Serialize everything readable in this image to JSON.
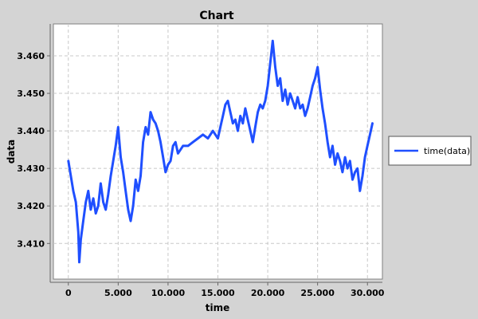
{
  "chart_data": {
    "type": "line",
    "title": "Chart",
    "xlabel": "time",
    "ylabel": "data",
    "xlim": [
      -1500,
      31500
    ],
    "ylim": [
      3.4005,
      3.4685
    ],
    "x_ticks": [
      0,
      5000,
      10000,
      15000,
      20000,
      25000,
      30000
    ],
    "x_tick_labels": [
      "0",
      "5.000",
      "10.000",
      "15.000",
      "20.000",
      "25.000",
      "30.000"
    ],
    "y_ticks": [
      3.41,
      3.42,
      3.43,
      3.44,
      3.45,
      3.46
    ],
    "y_tick_labels": [
      "3.410",
      "3.420",
      "3.430",
      "3.440",
      "3.450",
      "3.460"
    ],
    "grid": true,
    "legend_position": "right",
    "series": [
      {
        "name": "time(data)",
        "color": "#1f4fff",
        "x": [
          0,
          250,
          500,
          750,
          1000,
          1100,
          1250,
          1500,
          1750,
          2000,
          2250,
          2500,
          2750,
          3000,
          3250,
          3500,
          3750,
          4000,
          4250,
          4500,
          4750,
          5000,
          5250,
          5500,
          5750,
          6000,
          6250,
          6500,
          6750,
          7000,
          7250,
          7500,
          7750,
          8000,
          8250,
          8500,
          8750,
          9000,
          9250,
          9500,
          9750,
          10000,
          10250,
          10500,
          10750,
          11000,
          11500,
          12000,
          12500,
          13000,
          13500,
          14000,
          14500,
          15000,
          15250,
          15500,
          15750,
          16000,
          16250,
          16500,
          16750,
          17000,
          17250,
          17500,
          17750,
          18000,
          18250,
          18500,
          18750,
          19000,
          19250,
          19500,
          19750,
          20000,
          20250,
          20500,
          20750,
          21000,
          21250,
          21500,
          21750,
          22000,
          22250,
          22500,
          22750,
          23000,
          23250,
          23500,
          23750,
          24000,
          24250,
          24500,
          24750,
          25000,
          25250,
          25500,
          25750,
          26000,
          26250,
          26500,
          26750,
          27000,
          27250,
          27500,
          27750,
          28000,
          28250,
          28500,
          28750,
          29000,
          29250,
          29500,
          29750,
          30000,
          30250,
          30500
        ],
        "y": [
          3.432,
          3.428,
          3.424,
          3.421,
          3.413,
          3.405,
          3.411,
          3.416,
          3.421,
          3.424,
          3.419,
          3.422,
          3.418,
          3.42,
          3.426,
          3.421,
          3.419,
          3.423,
          3.428,
          3.432,
          3.436,
          3.441,
          3.433,
          3.429,
          3.424,
          3.419,
          3.416,
          3.42,
          3.427,
          3.424,
          3.428,
          3.437,
          3.441,
          3.439,
          3.445,
          3.443,
          3.442,
          3.44,
          3.437,
          3.433,
          3.429,
          3.431,
          3.432,
          3.436,
          3.437,
          3.434,
          3.436,
          3.436,
          3.437,
          3.438,
          3.439,
          3.438,
          3.44,
          3.438,
          3.441,
          3.444,
          3.447,
          3.448,
          3.445,
          3.442,
          3.443,
          3.44,
          3.444,
          3.442,
          3.446,
          3.443,
          3.44,
          3.437,
          3.441,
          3.445,
          3.447,
          3.446,
          3.448,
          3.452,
          3.458,
          3.464,
          3.457,
          3.452,
          3.454,
          3.448,
          3.451,
          3.447,
          3.45,
          3.448,
          3.446,
          3.449,
          3.446,
          3.447,
          3.444,
          3.446,
          3.449,
          3.452,
          3.454,
          3.457,
          3.451,
          3.446,
          3.442,
          3.437,
          3.433,
          3.436,
          3.431,
          3.434,
          3.432,
          3.429,
          3.433,
          3.43,
          3.432,
          3.427,
          3.429,
          3.43,
          3.424,
          3.428,
          3.433,
          3.436,
          3.439,
          3.442
        ]
      }
    ]
  }
}
